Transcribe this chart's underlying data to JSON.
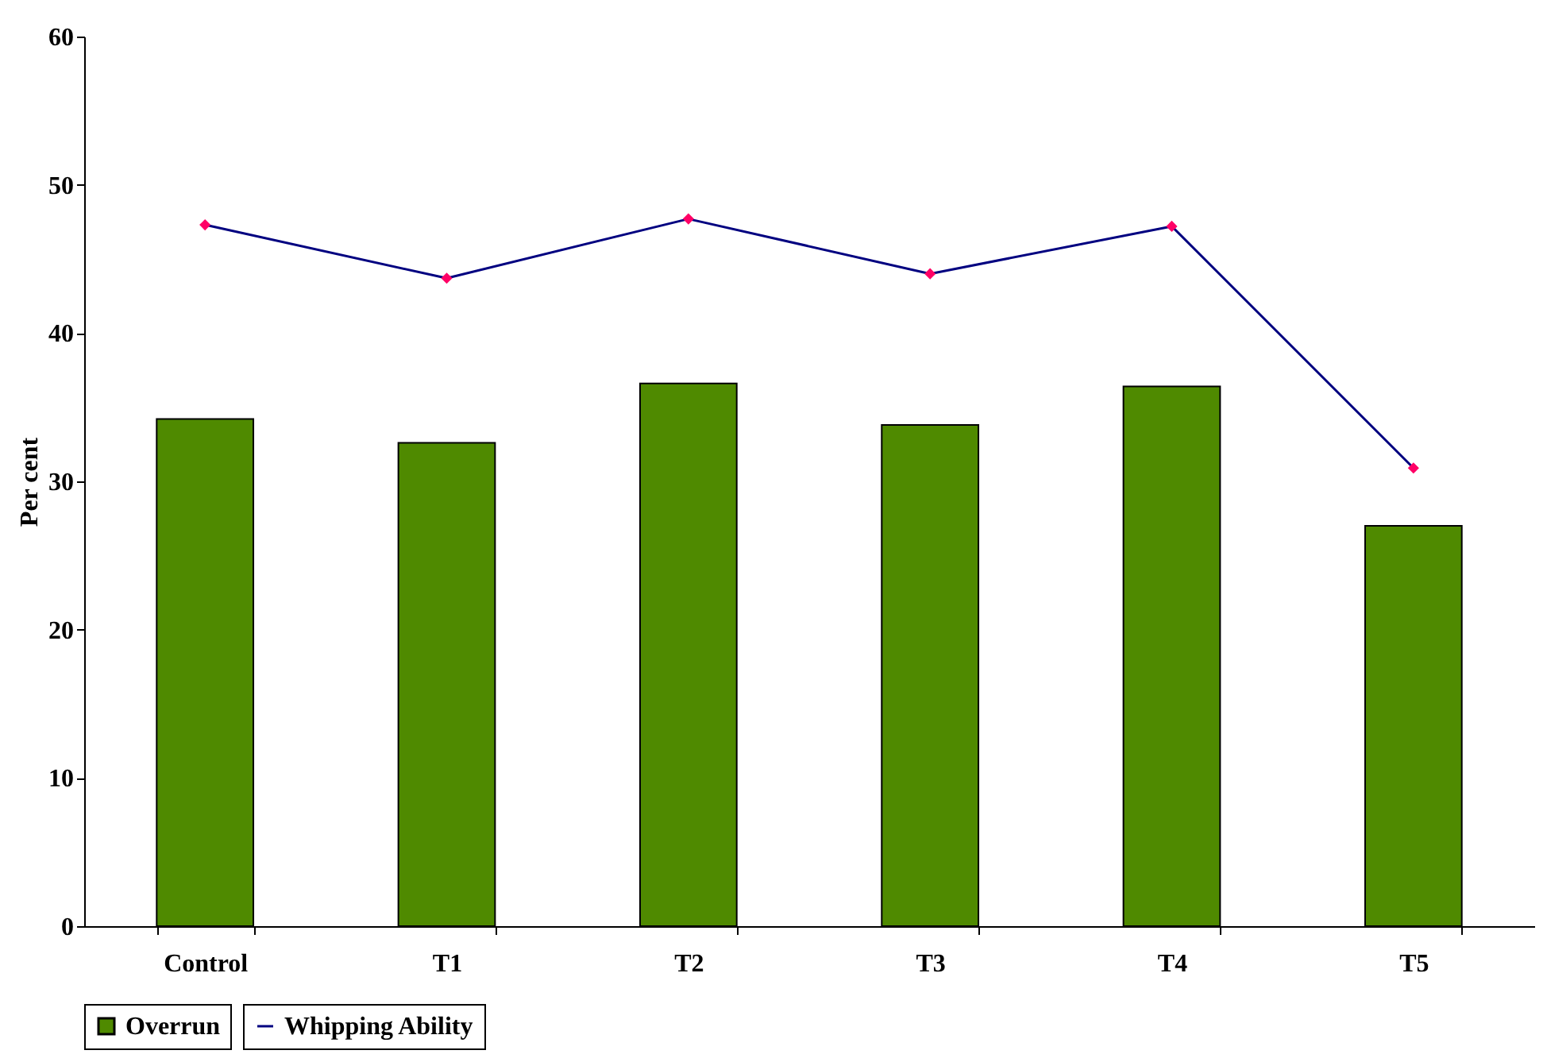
{
  "chart_data": {
    "type": "bar",
    "ylabel": "Per cent",
    "categories": [
      "Control",
      "T1",
      "T2",
      "T3",
      "T4",
      "T5"
    ],
    "series": [
      {
        "name": "Overrun",
        "color": "#4f8a00",
        "values": [
          34.2,
          32.6,
          36.6,
          33.8,
          36.4,
          27.0
        ]
      },
      {
        "name": "Whipping Ability",
        "type": "line",
        "color": "#000080",
        "marker": "diamond",
        "values": [
          47.3,
          43.7,
          47.7,
          44.0,
          47.2,
          30.9
        ]
      }
    ],
    "ylim": [
      0,
      60
    ],
    "yticks": [
      0,
      10,
      20,
      30,
      40,
      50,
      60
    ],
    "grid": false,
    "legend": "bottom"
  }
}
